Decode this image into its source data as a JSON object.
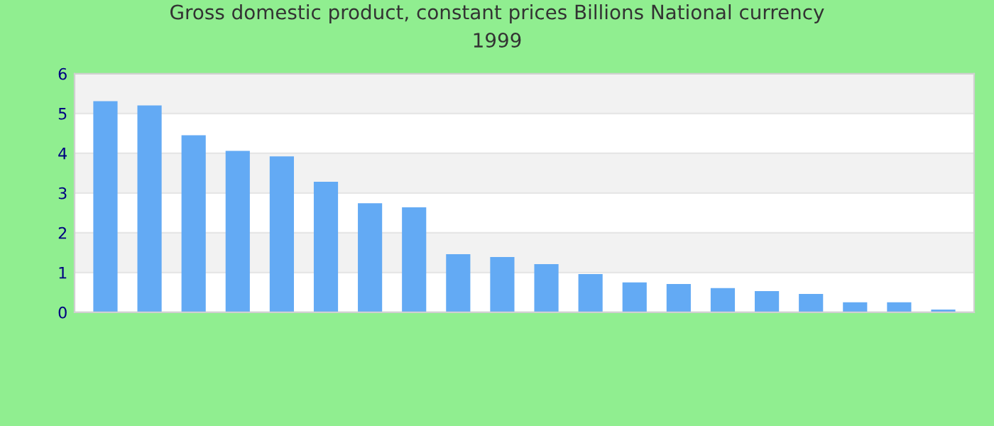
{
  "chart_data": {
    "type": "bar",
    "title": "Gross domestic product, constant prices Billions National currency\n1999",
    "categories": [
      null,
      null,
      null,
      null,
      null,
      null,
      null,
      null,
      null,
      null,
      null,
      null,
      null,
      null,
      null,
      null,
      null,
      null,
      null,
      null
    ],
    "values": [
      5.31,
      5.2,
      4.45,
      4.06,
      3.92,
      3.28,
      2.74,
      2.64,
      1.46,
      1.39,
      1.21,
      0.96,
      0.75,
      0.71,
      0.61,
      0.53,
      0.46,
      0.25,
      0.25,
      0.07
    ],
    "color": "#63aaf4",
    "ylim": [
      0,
      6
    ],
    "yticks": [
      0,
      1,
      2,
      3,
      4,
      5,
      6
    ],
    "grid": "y"
  }
}
